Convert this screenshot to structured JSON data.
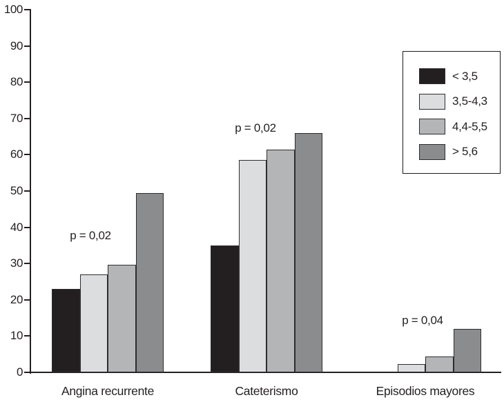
{
  "chart_data": {
    "type": "bar",
    "title": "",
    "xlabel": "",
    "ylabel": "",
    "categories": [
      "Angina recurrente",
      "Cateterismo",
      "Episodios mayores"
    ],
    "series": [
      {
        "name": "< 3,5",
        "color": "#231f20",
        "values": [
          23,
          35,
          0
        ]
      },
      {
        "name": "3,5-4,3",
        "color": "#dcddde",
        "values": [
          27,
          58.5,
          2.2
        ]
      },
      {
        "name": "4,4-5,5",
        "color": "#b4b5b7",
        "values": [
          29.7,
          61.5,
          4.4
        ]
      },
      {
        "name": "> 5,6",
        "color": "#8a8c8e",
        "values": [
          49.5,
          66,
          12
        ]
      }
    ],
    "annotations": [
      {
        "category": "Angina recurrente",
        "text": "p = 0,02"
      },
      {
        "category": "Cateterismo",
        "text": "p = 0,02"
      },
      {
        "category": "Episodios mayores",
        "text": "p = 0,04"
      }
    ],
    "ylim": [
      0,
      100
    ],
    "yticks": [
      0,
      10,
      20,
      30,
      40,
      50,
      60,
      70,
      80,
      90,
      100
    ],
    "grid": false,
    "legend_position": "upper right",
    "bar_border_color": "#2e2c2d",
    "axis_color": "#231f20"
  }
}
